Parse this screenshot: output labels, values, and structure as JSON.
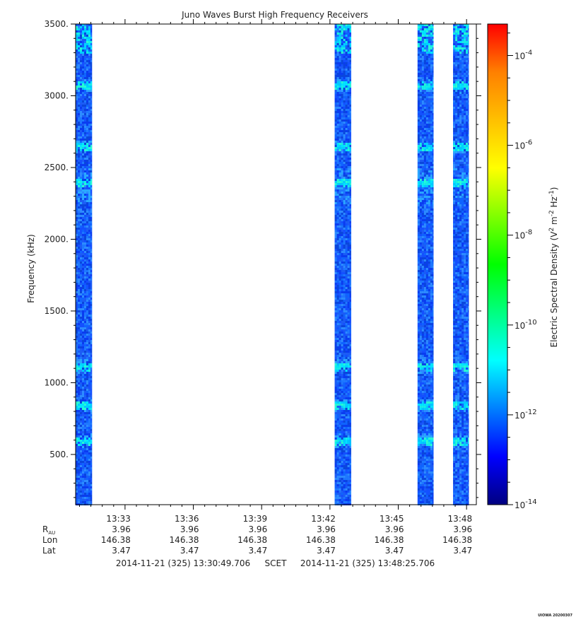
{
  "chart_data": {
    "type": "heatmap",
    "title": "Juno Waves Burst High Frequency Receivers",
    "ylabel": "Frequency (kHz)",
    "ylim": [
      150,
      3500
    ],
    "yticks": [
      {
        "value": 500,
        "label": "500."
      },
      {
        "value": 1000,
        "label": "1000."
      },
      {
        "value": 1500,
        "label": "1500."
      },
      {
        "value": 2000,
        "label": "2000."
      },
      {
        "value": 2500,
        "label": "2500."
      },
      {
        "value": 3000,
        "label": "3000."
      },
      {
        "value": 3500,
        "label": "3500."
      }
    ],
    "xrange_minutes": [
      0.0,
      17.6
    ],
    "x_start": "13:30:49.706",
    "xticks": [
      {
        "minute": 2.17,
        "label": "13:33"
      },
      {
        "minute": 5.17,
        "label": "13:36"
      },
      {
        "minute": 8.17,
        "label": "13:39"
      },
      {
        "minute": 11.17,
        "label": "13:42"
      },
      {
        "minute": 14.17,
        "label": "13:45"
      },
      {
        "minute": 17.17,
        "label": "13:48"
      }
    ],
    "data_segments": [
      {
        "start_minute": 0.0,
        "end_minute": 0.72
      },
      {
        "start_minute": 11.38,
        "end_minute": 12.1
      },
      {
        "start_minute": 15.02,
        "end_minute": 15.72
      },
      {
        "start_minute": 16.58,
        "end_minute": 17.27
      }
    ],
    "emission_bands_khz": [
      3075,
      2650,
      2400,
      1120,
      850,
      600
    ],
    "colorbar": {
      "label_main": "Electric Spectral Density (V",
      "label_exp1": "2",
      "label_mid": " m",
      "label_exp2": "-2",
      "label_mid2": " Hz",
      "label_exp3": "-1",
      "label_end": ")",
      "log_min": -14,
      "log_max": -3.3,
      "ticks": [
        {
          "base": "10",
          "exp": "-4",
          "log": -4
        },
        {
          "base": "10",
          "exp": "-6",
          "log": -6
        },
        {
          "base": "10",
          "exp": "-8",
          "log": -8
        },
        {
          "base": "10",
          "exp": "-10",
          "log": -10
        },
        {
          "base": "10",
          "exp": "-12",
          "log": -12
        },
        {
          "base": "10",
          "exp": "-14",
          "log": -14
        }
      ],
      "colors": [
        "#000080",
        "#0000ff",
        "#0080ff",
        "#00ffff",
        "#00ff80",
        "#00ff00",
        "#80ff00",
        "#ffff00",
        "#ffc000",
        "#ff8000",
        "#ff0000"
      ]
    },
    "ephemeris": {
      "rows": [
        {
          "label": "R",
          "sub": "AU",
          "values": [
            "3.96",
            "3.96",
            "3.96",
            "3.96",
            "3.96",
            "3.96"
          ]
        },
        {
          "label": "Lon",
          "sub": "",
          "values": [
            "146.38",
            "146.38",
            "146.38",
            "146.38",
            "146.38",
            "146.38"
          ]
        },
        {
          "label": "Lat",
          "sub": "",
          "values": [
            "3.47",
            "3.47",
            "3.47",
            "3.47",
            "3.47",
            "3.47"
          ]
        }
      ]
    },
    "time_range": {
      "start": "2014-11-21 (325) 13:30:49.706",
      "center": "SCET",
      "end": "2014-11-21 (325) 13:48:25.706"
    },
    "footer": "UIOWA 20200307"
  }
}
